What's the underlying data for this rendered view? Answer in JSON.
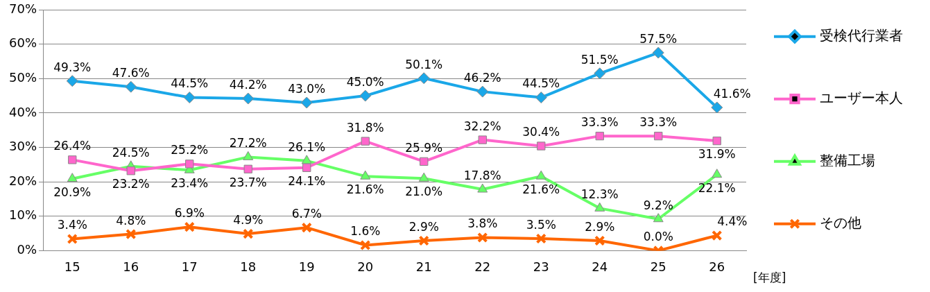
{
  "chart_data": {
    "type": "line",
    "categories": [
      "15",
      "16",
      "17",
      "18",
      "19",
      "20",
      "21",
      "22",
      "23",
      "24",
      "25",
      "26"
    ],
    "xlabel": "[年度]",
    "ylim": [
      0,
      0.7
    ],
    "yticks": [
      {
        "value": 0,
        "label": "0%"
      },
      {
        "value": 0.1,
        "label": "10%"
      },
      {
        "value": 0.2,
        "label": "20%"
      },
      {
        "value": 0.3,
        "label": "30%"
      },
      {
        "value": 0.4,
        "label": "40%"
      },
      {
        "value": 0.5,
        "label": "50%"
      },
      {
        "value": 0.6,
        "label": "60%"
      },
      {
        "value": 0.7,
        "label": "70%"
      }
    ],
    "grid": "y",
    "legend": "right",
    "series": [
      {
        "name": "受検代行業者",
        "color": "#1aa7e8",
        "marker": "diamond",
        "values": [
          0.493,
          0.476,
          0.445,
          0.442,
          0.43,
          0.45,
          0.501,
          0.462,
          0.445,
          0.515,
          0.575,
          0.416
        ],
        "value_labels": [
          "49.3%",
          "47.6%",
          "44.5%",
          "44.2%",
          "43.0%",
          "45.0%",
          "50.1%",
          "46.2%",
          "44.5%",
          "51.5%",
          "57.5%",
          "41.6%"
        ]
      },
      {
        "name": "ユーザー本人",
        "color": "#ff66cc",
        "marker": "square",
        "values": [
          0.264,
          0.232,
          0.252,
          0.237,
          0.241,
          0.318,
          0.259,
          0.322,
          0.304,
          0.333,
          0.333,
          0.319
        ],
        "value_labels": [
          "26.4%",
          "23.2%",
          "25.2%",
          "23.7%",
          "24.1%",
          "31.8%",
          "25.9%",
          "32.2%",
          "30.4%",
          "33.3%",
          "33.3%",
          "31.9%"
        ]
      },
      {
        "name": "整備工場",
        "color": "#66ff66",
        "marker": "triangle",
        "values": [
          0.209,
          0.245,
          0.234,
          0.272,
          0.261,
          0.216,
          0.21,
          0.178,
          0.216,
          0.123,
          0.092,
          0.221
        ],
        "value_labels": [
          "20.9%",
          "24.5%",
          "23.4%",
          "27.2%",
          "26.1%",
          "21.6%",
          "21.0%",
          "17.8%",
          "21.6%",
          "12.3%",
          "9.2%",
          "22.1%"
        ]
      },
      {
        "name": "その他",
        "color": "#ff6600",
        "marker": "cross",
        "values": [
          0.034,
          0.048,
          0.069,
          0.049,
          0.067,
          0.016,
          0.029,
          0.038,
          0.035,
          0.029,
          0.0,
          0.044
        ],
        "value_labels": [
          "3.4%",
          "4.8%",
          "6.9%",
          "4.9%",
          "6.7%",
          "1.6%",
          "2.9%",
          "3.8%",
          "3.5%",
          "2.9%",
          "0.0%",
          "4.4%"
        ]
      }
    ]
  }
}
